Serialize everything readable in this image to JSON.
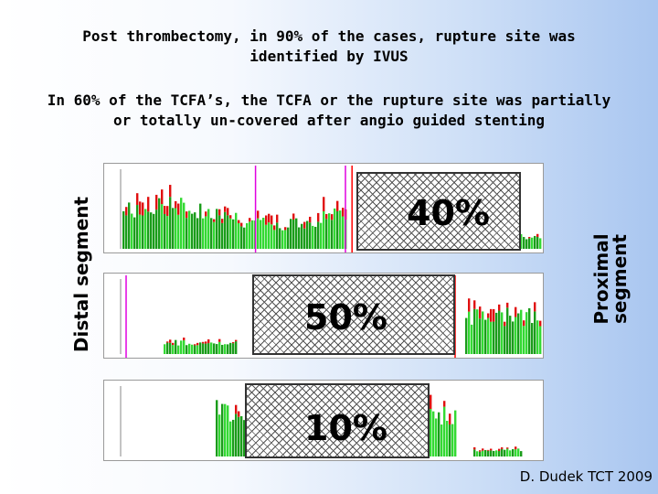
{
  "title_line1": "Post thrombectomy, in  90% of the cases, rupture site was",
  "title_line1b": "identified by IVUS",
  "title_line2": "In 60% of the TCFA’s, the TCFA or the rupture site was partially",
  "title_line2b": "or totally un-covered after angio guided stenting",
  "left_label": "Distal segment",
  "right_label_1": "Proximal",
  "right_label_2": "segment",
  "pct_top": "40%",
  "pct_middle": "50%",
  "pct_bottom": "10%",
  "credit": "D. Dudek TCT 2009",
  "colors": {
    "green": "#1a9c1a",
    "bright_green": "#33d933",
    "red": "#e01010",
    "marker_magenta": "#e000e0",
    "marker_red": "#ff0000"
  }
}
